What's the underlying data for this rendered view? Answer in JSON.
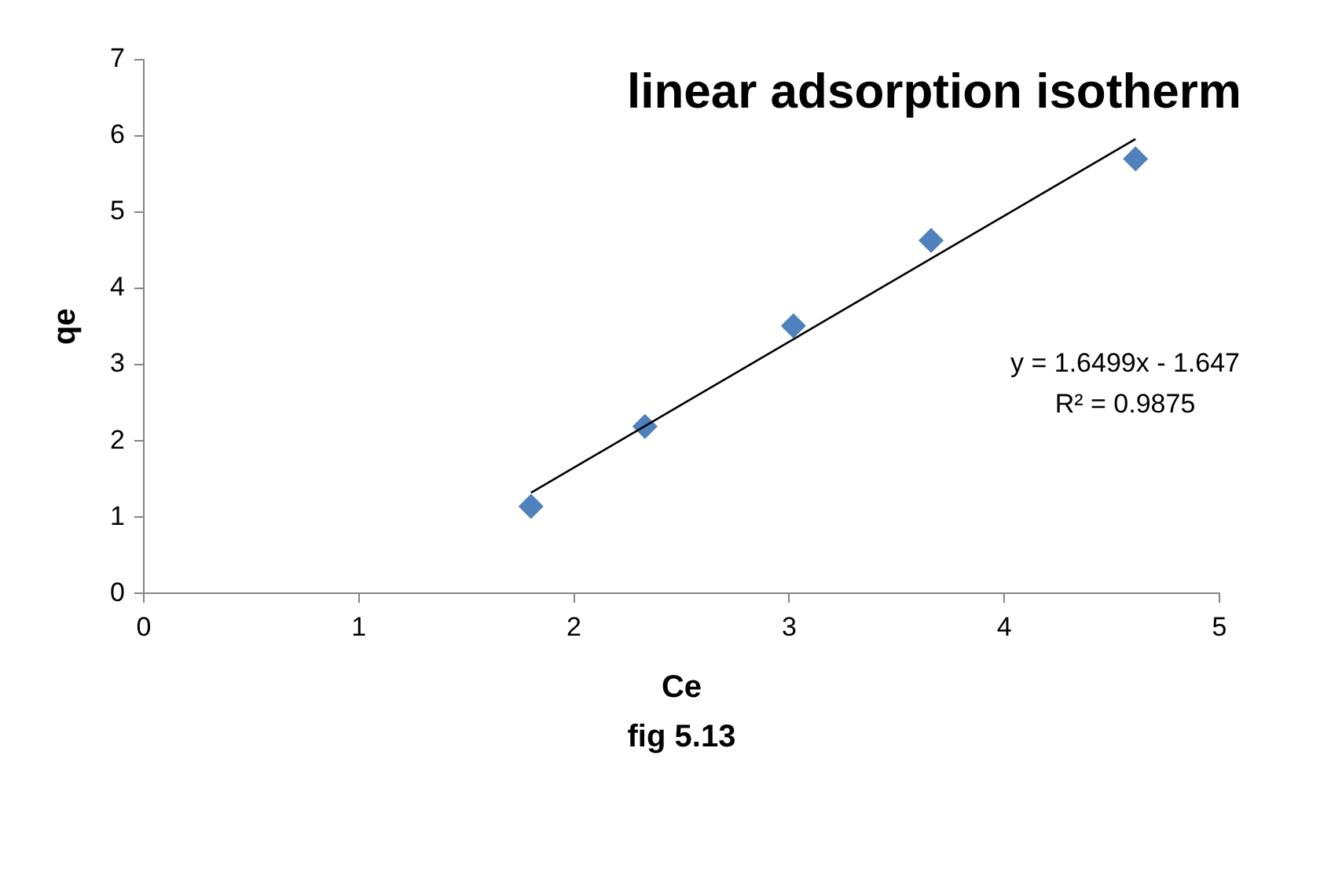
{
  "chart_data": {
    "type": "scatter",
    "title": "linear adsorption isotherm",
    "xlabel": "Ce",
    "ylabel": "qe",
    "annotations": [
      "y = 1.6499x - 1.647",
      "R² = 0.9875",
      "fig 5.13"
    ],
    "series": [
      {
        "type": "scatter",
        "color": "#4f81bd",
        "marker": "diamond",
        "x": [
          1.8,
          2.33,
          3.02,
          3.66,
          4.61
        ],
        "values": [
          1.14,
          2.19,
          3.51,
          4.63,
          5.7
        ]
      },
      {
        "type": "line",
        "color": "#000000",
        "marker": "none",
        "line_style": "solid",
        "x": [
          1.8,
          4.61
        ],
        "values": [
          1.32,
          5.96
        ]
      }
    ],
    "xlim": [
      0,
      5
    ],
    "xticks": [
      0,
      1,
      2,
      3,
      4,
      5
    ],
    "ylim": [
      0,
      7
    ],
    "yticks": [
      0,
      1,
      2,
      3,
      4,
      5,
      6,
      7
    ],
    "grid": false,
    "legend": false
  }
}
